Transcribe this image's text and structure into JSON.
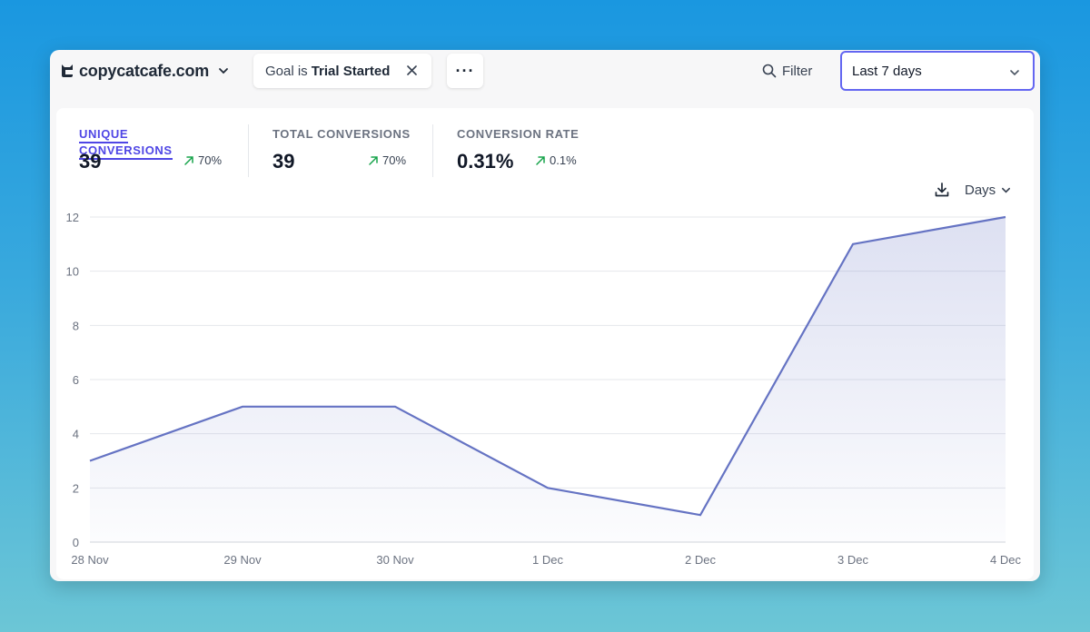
{
  "site": {
    "name": "copycatcafe.com",
    "logo_icon": "cat-logo-icon"
  },
  "goal_filter": {
    "prefix": "Goal is",
    "value": "Trial Started"
  },
  "more_button": {
    "label": "···"
  },
  "filter_button": {
    "label": "Filter"
  },
  "date_range": {
    "label": "Last 7 days"
  },
  "stats": [
    {
      "label": "UNIQUE CONVERSIONS",
      "value": "39",
      "change": "70%",
      "active": true
    },
    {
      "label": "TOTAL CONVERSIONS",
      "value": "39",
      "change": "70%",
      "active": false
    },
    {
      "label": "CONVERSION RATE",
      "value": "0.31%",
      "change": "0.1%",
      "active": false
    }
  ],
  "interval": {
    "label": "Days"
  },
  "colors": {
    "accent": "#4f46e5",
    "line": "#6573c3",
    "up": "#16a34a"
  },
  "chart_data": {
    "type": "area",
    "title": "",
    "xlabel": "",
    "ylabel": "",
    "categories": [
      "28 Nov",
      "29 Nov",
      "30 Nov",
      "1 Dec",
      "2 Dec",
      "3 Dec",
      "4 Dec"
    ],
    "series": [
      {
        "name": "Unique conversions",
        "values": [
          3,
          5,
          5,
          2,
          1,
          11,
          12
        ]
      }
    ],
    "y_ticks": [
      0,
      2,
      4,
      6,
      8,
      10,
      12
    ],
    "ylim": [
      0,
      12
    ],
    "grid": true
  }
}
